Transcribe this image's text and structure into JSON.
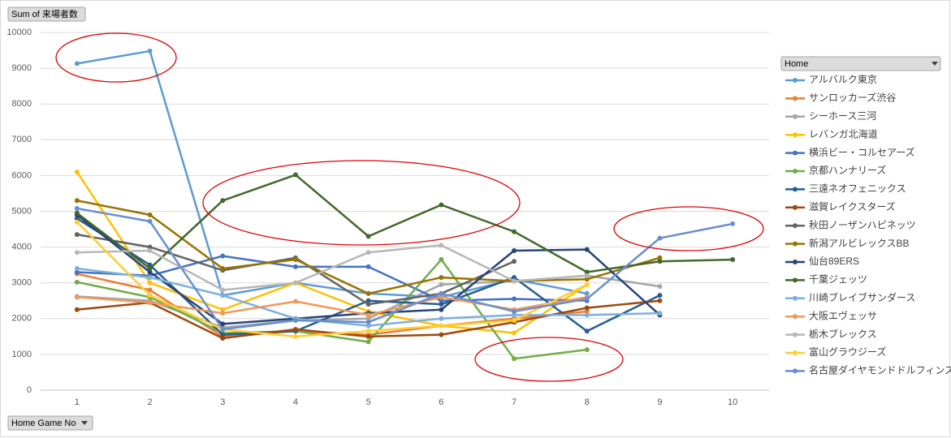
{
  "chart_data": {
    "type": "line",
    "field_button": "Sum of 来場者数",
    "axis_field_button": "Home Game No",
    "legend_title": "Home",
    "categories": [
      "1",
      "2",
      "3",
      "4",
      "5",
      "6",
      "7",
      "8",
      "9",
      "10"
    ],
    "ylim": [
      0,
      10000
    ],
    "yticks": [
      0,
      1000,
      2000,
      3000,
      4000,
      5000,
      6000,
      7000,
      8000,
      9000,
      10000
    ],
    "grid": true,
    "legend": "right",
    "series": [
      {
        "name": "アルバルク東京",
        "color": "#5b9bd5",
        "values": [
          9130,
          9480,
          2650,
          3000,
          2700,
          2600,
          3100,
          2700,
          null,
          null
        ]
      },
      {
        "name": "サンロッカーズ渋谷",
        "color": "#ed7d31",
        "values": [
          3250,
          2800,
          1500,
          1650,
          1550,
          1800,
          2000,
          2200,
          null,
          null
        ]
      },
      {
        "name": "シーホース三河",
        "color": "#a5a5a5",
        "values": [
          2620,
          2500,
          1750,
          1950,
          2000,
          2950,
          3050,
          3200,
          2900,
          null
        ]
      },
      {
        "name": "レバンガ北海道",
        "color": "#ffc000",
        "values": [
          6100,
          3000,
          2250,
          3000,
          2200,
          1800,
          1600,
          2950,
          null,
          null
        ]
      },
      {
        "name": "横浜ビー・コルセアーズ",
        "color": "#4472c4",
        "values": [
          3300,
          3200,
          3750,
          3450,
          3450,
          2500,
          2550,
          2500,
          null,
          null
        ]
      },
      {
        "name": "京都ハンナリーズ",
        "color": "#70ad47",
        "values": [
          3020,
          2600,
          1600,
          1650,
          1350,
          3650,
          880,
          1130,
          null,
          null
        ]
      },
      {
        "name": "三遠ネオフェニックス",
        "color": "#255e91",
        "values": [
          4800,
          3500,
          1550,
          1650,
          2500,
          2400,
          3150,
          1650,
          2650,
          null
        ]
      },
      {
        "name": "滋賀レイクスターズ",
        "color": "#9e480e",
        "values": [
          2250,
          2450,
          1450,
          1700,
          1500,
          1550,
          1900,
          2300,
          2500,
          null
        ]
      },
      {
        "name": "秋田ノーザンハピネッツ",
        "color": "#636363",
        "values": [
          4350,
          4000,
          3350,
          3700,
          2400,
          2700,
          3600,
          null,
          null,
          null
        ]
      },
      {
        "name": "新潟アルビレックスBB",
        "color": "#997300",
        "values": [
          5300,
          4900,
          3400,
          3650,
          2700,
          3150,
          3050,
          3100,
          3700,
          null
        ]
      },
      {
        "name": "仙台89ERS",
        "color": "#264478",
        "values": [
          4900,
          3300,
          1850,
          2000,
          2150,
          2250,
          3900,
          3930,
          2100,
          null
        ]
      },
      {
        "name": "千葉ジェッツ",
        "color": "#43682b",
        "values": [
          4950,
          3400,
          5300,
          6020,
          4300,
          5180,
          4430,
          3300,
          3600,
          3650
        ]
      },
      {
        "name": "川崎ブレイブサンダース",
        "color": "#7cafdd",
        "values": [
          3400,
          3150,
          2650,
          2000,
          1800,
          2000,
          2100,
          2100,
          2150,
          null
        ]
      },
      {
        "name": "大阪エヴェッサ",
        "color": "#f1975a",
        "values": [
          2600,
          2450,
          2150,
          2480,
          2100,
          2600,
          2250,
          2600,
          null,
          null
        ]
      },
      {
        "name": "栃木ブレックス",
        "color": "#b7b7b7",
        "values": [
          3850,
          3900,
          2800,
          3000,
          3850,
          4050,
          3050,
          3200,
          null,
          null
        ]
      },
      {
        "name": "富山グラウジーズ",
        "color": "#ffcd33",
        "values": [
          4700,
          2650,
          1700,
          1500,
          1650,
          1800,
          1950,
          2950,
          null,
          null
        ]
      },
      {
        "name": "名古屋ダイヤモンドドルフィンズ",
        "color": "#698ed0",
        "values": [
          5080,
          4720,
          1700,
          1950,
          1900,
          2700,
          2200,
          2550,
          4250,
          4650
        ]
      }
    ]
  }
}
